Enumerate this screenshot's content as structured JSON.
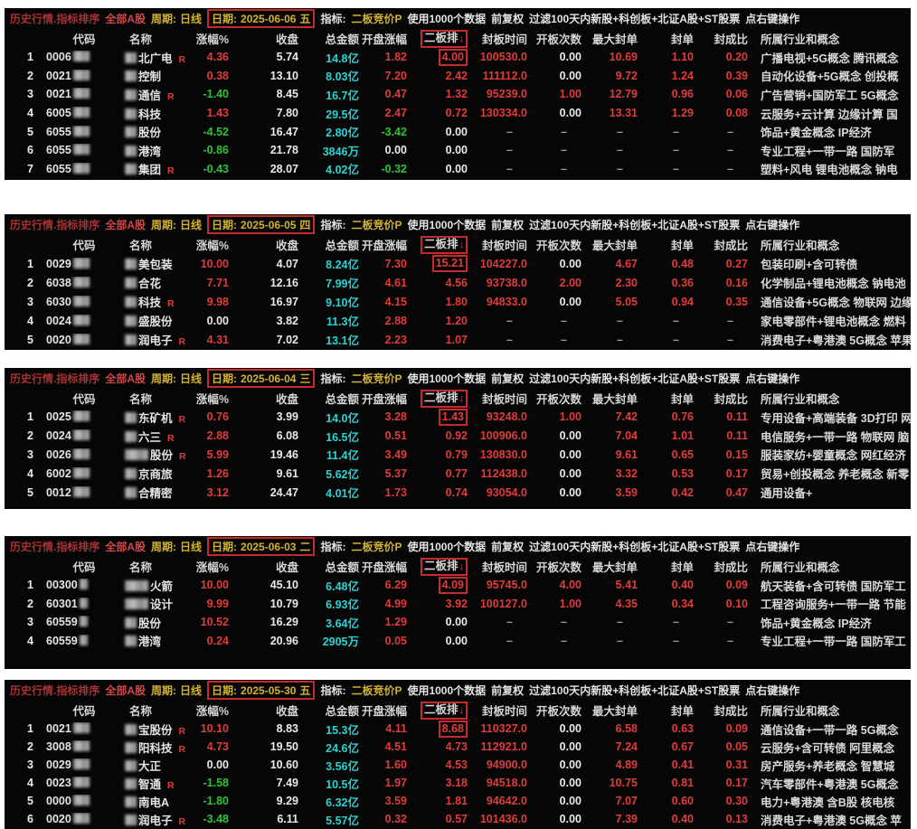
{
  "ui": {
    "sort_arrow": "↓",
    "dash": "–",
    "colors": {
      "up": "#e23b3b",
      "down": "#2bc437",
      "amount": "#29d3d3",
      "highlight_box": "#c62b2b",
      "date_text": "#d4b22e"
    }
  },
  "panels": [
    {
      "toolbar": {
        "title": "历史行情.指标排序",
        "market": "全部A股",
        "period_label": "周期:",
        "period_value": "日线",
        "date_label": "日期:",
        "date_value": "2025-06-06",
        "weekday": "五",
        "indicator_label": "指标:",
        "indicator_value": "二板竞价P",
        "data_info": "使用1000个数据",
        "fuquan": "前复权",
        "filter_info": "过滤100天内新股+科创板+北证A股+ST股票",
        "hint": "点右键操作"
      },
      "columns": [
        "代码",
        "名称",
        "涨幅%",
        "收盘",
        "总金额",
        "开盘涨幅",
        "二板排",
        "封板时间",
        "开板次数",
        "最大封单",
        "封单",
        "封成比",
        "所属行业和概念"
      ],
      "rows": [
        {
          "idx": "1",
          "code": "0006",
          "code_mask": 2,
          "name_mask": 1,
          "name": "北广电",
          "r": true,
          "pct": "4.36",
          "close": "5.74",
          "amount": "14.8亿",
          "open_pct": "1.82",
          "erban": "4.00",
          "erban_boxed": true,
          "seal_time": "100530.0",
          "open_times": "0.00",
          "max_seal": "10.69",
          "seal": "1.10",
          "seal_ratio": "0.20",
          "industry": "广播电视+5G概念 腾讯概念"
        },
        {
          "idx": "2",
          "code": "0021",
          "code_mask": 2,
          "name_mask": 1,
          "name": "控制",
          "r": false,
          "pct": "0.38",
          "close": "13.10",
          "amount": "8.03亿",
          "open_pct": "7.20",
          "erban": "2.42",
          "erban_boxed": false,
          "seal_time": "111112.0",
          "open_times": "0.00",
          "max_seal": "9.72",
          "seal": "1.24",
          "seal_ratio": "0.39",
          "industry": "自动化设备+5G概念 创投概"
        },
        {
          "idx": "3",
          "code": "0021",
          "code_mask": 2,
          "name_mask": 1,
          "name": "通信",
          "r": true,
          "pct": "-1.40",
          "close": "8.45",
          "amount": "16.7亿",
          "open_pct": "0.47",
          "erban": "1.32",
          "erban_boxed": false,
          "seal_time": "95239.0",
          "open_times": "1.00",
          "max_seal": "12.79",
          "seal": "0.96",
          "seal_ratio": "0.06",
          "industry": "广告营销+国防军工 5G概念"
        },
        {
          "idx": "4",
          "code": "6005",
          "code_mask": 2,
          "name_mask": 1,
          "name": "科技",
          "r": false,
          "pct": "1.43",
          "close": "7.80",
          "amount": "29.5亿",
          "open_pct": "2.47",
          "erban": "0.72",
          "erban_boxed": false,
          "seal_time": "130334.0",
          "open_times": "0.00",
          "max_seal": "13.31",
          "seal": "1.29",
          "seal_ratio": "0.08",
          "industry": "云服务+云计算 边缘计算 国"
        },
        {
          "idx": "5",
          "code": "6055",
          "code_mask": 2,
          "name_mask": 1,
          "name": "股份",
          "r": false,
          "pct": "-4.52",
          "close": "16.47",
          "amount": "2.80亿",
          "open_pct": "-3.42",
          "erban": "0.00",
          "erban_boxed": false,
          "seal_time": "–",
          "open_times": "–",
          "max_seal": "–",
          "seal": "–",
          "seal_ratio": "–",
          "industry": "饰品+黄金概念 IP经济"
        },
        {
          "idx": "6",
          "code": "6055",
          "code_mask": 2,
          "name_mask": 1,
          "name": "港湾",
          "r": false,
          "pct": "-0.86",
          "close": "21.78",
          "amount": "3846万",
          "open_pct": "0.00",
          "erban": "0.00",
          "erban_boxed": false,
          "seal_time": "–",
          "open_times": "–",
          "max_seal": "–",
          "seal": "–",
          "seal_ratio": "–",
          "industry": "专业工程+一带一路 国防军"
        },
        {
          "idx": "7",
          "code": "6055",
          "code_mask": 2,
          "name_mask": 1,
          "name": "集团",
          "r": true,
          "pct": "-0.43",
          "close": "28.07",
          "amount": "4.02亿",
          "open_pct": "-0.32",
          "erban": "0.00",
          "erban_boxed": false,
          "seal_time": "–",
          "open_times": "–",
          "max_seal": "–",
          "seal": "–",
          "seal_ratio": "–",
          "industry": "塑料+风电 锂电池概念 钠电"
        }
      ]
    },
    {
      "toolbar": {
        "title": "历史行情.指标排序",
        "market": "全部A股",
        "period_label": "周期:",
        "period_value": "日线",
        "date_label": "日期:",
        "date_value": "2025-06-05",
        "weekday": "四",
        "indicator_label": "指标:",
        "indicator_value": "二板竞价P",
        "data_info": "使用1000个数据",
        "fuquan": "前复权",
        "filter_info": "过滤100天内新股+科创板+北证A股+ST股票",
        "hint": "点右键操作"
      },
      "columns": [
        "代码",
        "名称",
        "涨幅%",
        "收盘",
        "总金额",
        "开盘涨幅",
        "二板排",
        "封板时间",
        "开板次数",
        "最大封单",
        "封单",
        "封成比",
        "所属行业和概念"
      ],
      "rows": [
        {
          "idx": "1",
          "code": "0029",
          "code_mask": 2,
          "name_mask": 1,
          "name": "美包装",
          "r": false,
          "pct": "10.00",
          "close": "4.07",
          "amount": "8.24亿",
          "open_pct": "7.30",
          "erban": "15.21",
          "erban_boxed": true,
          "seal_time": "104227.0",
          "open_times": "0.00",
          "max_seal": "4.67",
          "seal": "0.48",
          "seal_ratio": "0.27",
          "industry": "包装印刷+含可转债"
        },
        {
          "idx": "2",
          "code": "6038",
          "code_mask": 2,
          "name_mask": 1,
          "name": "合花",
          "r": false,
          "pct": "7.71",
          "close": "12.16",
          "amount": "7.99亿",
          "open_pct": "4.61",
          "erban": "4.56",
          "erban_boxed": false,
          "seal_time": "93738.0",
          "open_times": "2.00",
          "max_seal": "2.30",
          "seal": "0.36",
          "seal_ratio": "0.16",
          "industry": "化学制品+锂电池概念 钠电池"
        },
        {
          "idx": "3",
          "code": "6030",
          "code_mask": 2,
          "name_mask": 1,
          "name": "科技",
          "r": true,
          "pct": "9.98",
          "close": "16.97",
          "amount": "9.10亿",
          "open_pct": "4.15",
          "erban": "1.80",
          "erban_boxed": false,
          "seal_time": "94833.0",
          "open_times": "0.00",
          "max_seal": "5.05",
          "seal": "0.94",
          "seal_ratio": "0.35",
          "industry": "通信设备+5G概念 物联网 边缘"
        },
        {
          "idx": "4",
          "code": "0024",
          "code_mask": 2,
          "name_mask": 1,
          "name": "盛股份",
          "r": false,
          "pct": "0.00",
          "close": "3.82",
          "amount": "11.3亿",
          "open_pct": "2.88",
          "erban": "1.20",
          "erban_boxed": false,
          "seal_time": "–",
          "open_times": "–",
          "max_seal": "–",
          "seal": "–",
          "seal_ratio": "–",
          "industry": "家电零部件+锂电池概念 燃料"
        },
        {
          "idx": "5",
          "code": "0020",
          "code_mask": 2,
          "name_mask": 1,
          "name": "润电子",
          "r": true,
          "pct": "4.31",
          "close": "7.02",
          "amount": "13.1亿",
          "open_pct": "2.23",
          "erban": "1.07",
          "erban_boxed": false,
          "seal_time": "–",
          "open_times": "–",
          "max_seal": "–",
          "seal": "–",
          "seal_ratio": "–",
          "industry": "消费电子+粤港澳 5G概念 苹果"
        }
      ]
    },
    {
      "toolbar": {
        "title": "历史行情.指标排序",
        "market": "全部A股",
        "period_label": "周期:",
        "period_value": "日线",
        "date_label": "日期:",
        "date_value": "2025-06-04",
        "weekday": "三",
        "indicator_label": "指标:",
        "indicator_value": "二板竞价P",
        "data_info": "使用1000个数据",
        "fuquan": "前复权",
        "filter_info": "过滤100天内新股+科创板+北证A股+ST股票",
        "hint": "点右键操作"
      },
      "columns": [
        "代码",
        "名称",
        "涨幅%",
        "收盘",
        "总金额",
        "开盘涨幅",
        "二板排",
        "封板时间",
        "开板次数",
        "最大封单",
        "封单",
        "封成比",
        "所属行业和概念"
      ],
      "rows": [
        {
          "idx": "1",
          "code": "0025",
          "code_mask": 2,
          "name_mask": 1,
          "name": "东矿机",
          "r": true,
          "pct": "0.76",
          "close": "3.99",
          "amount": "14.0亿",
          "open_pct": "3.28",
          "erban": "1.43",
          "erban_boxed": true,
          "seal_time": "93248.0",
          "open_times": "1.00",
          "max_seal": "7.42",
          "seal": "0.76",
          "seal_ratio": "0.11",
          "industry": "专用设备+高端装备 3D打印 网"
        },
        {
          "idx": "2",
          "code": "0024",
          "code_mask": 2,
          "name_mask": 1,
          "name": "六三",
          "r": true,
          "pct": "2.88",
          "close": "6.08",
          "amount": "16.5亿",
          "open_pct": "0.51",
          "erban": "0.92",
          "erban_boxed": false,
          "seal_time": "100906.0",
          "open_times": "0.00",
          "max_seal": "7.04",
          "seal": "1.01",
          "seal_ratio": "0.11",
          "industry": "电信服务+一带一路 物联网 脑"
        },
        {
          "idx": "3",
          "code": "0026",
          "code_mask": 2,
          "name_mask": 2,
          "name": "股份",
          "r": true,
          "pct": "5.99",
          "close": "19.46",
          "amount": "11.4亿",
          "open_pct": "3.49",
          "erban": "0.79",
          "erban_boxed": false,
          "seal_time": "130830.0",
          "open_times": "0.00",
          "max_seal": "9.61",
          "seal": "0.65",
          "seal_ratio": "0.15",
          "industry": "服装家纺+婴童概念 网红经济"
        },
        {
          "idx": "4",
          "code": "6002",
          "code_mask": 2,
          "name_mask": 1,
          "name": "京商旅",
          "r": false,
          "pct": "1.26",
          "close": "9.61",
          "amount": "5.62亿",
          "open_pct": "5.37",
          "erban": "0.77",
          "erban_boxed": false,
          "seal_time": "112438.0",
          "open_times": "0.00",
          "max_seal": "3.32",
          "seal": "0.53",
          "seal_ratio": "0.17",
          "industry": "贸易+创投概念 养老概念 新零"
        },
        {
          "idx": "5",
          "code": "0012",
          "code_mask": 2,
          "name_mask": 1,
          "name": "合精密",
          "r": false,
          "pct": "3.12",
          "close": "24.47",
          "amount": "4.01亿",
          "open_pct": "1.73",
          "erban": "0.74",
          "erban_boxed": false,
          "seal_time": "93054.0",
          "open_times": "0.00",
          "max_seal": "3.59",
          "seal": "0.42",
          "seal_ratio": "0.47",
          "industry": "通用设备+"
        }
      ]
    },
    {
      "toolbar": {
        "title": "历史行情.指标排序",
        "market": "全部A股",
        "period_label": "周期:",
        "period_value": "日线",
        "date_label": "日期:",
        "date_value": "2025-06-03",
        "weekday": "二",
        "indicator_label": "指标:",
        "indicator_value": "二板竞价P",
        "data_info": "使用1000个数据",
        "fuquan": "前复权",
        "filter_info": "过滤100天内新股+科创板+北证A股+ST股票",
        "hint": "点右键操作"
      },
      "columns": [
        "代码",
        "名称",
        "涨幅%",
        "收盘",
        "总金额",
        "开盘涨幅",
        "二板排",
        "封板时间",
        "开板次数",
        "最大封单",
        "封单",
        "封成比",
        "所属行业和概念"
      ],
      "rows": [
        {
          "idx": "1",
          "code": "00300",
          "code_mask": 1,
          "name_mask": 2,
          "name": "火箭",
          "r": false,
          "pct": "10.00",
          "close": "45.10",
          "amount": "6.48亿",
          "open_pct": "6.29",
          "erban": "4.09",
          "erban_boxed": true,
          "seal_time": "95745.0",
          "open_times": "4.00",
          "max_seal": "5.41",
          "seal": "0.40",
          "seal_ratio": "0.09",
          "industry": "航天装备+含可转债 国防军工"
        },
        {
          "idx": "2",
          "code": "60301",
          "code_mask": 1,
          "name_mask": 2,
          "name": "设计",
          "r": false,
          "pct": "9.99",
          "close": "10.79",
          "amount": "6.93亿",
          "open_pct": "4.99",
          "erban": "3.92",
          "erban_boxed": false,
          "seal_time": "100127.0",
          "open_times": "1.00",
          "max_seal": "4.35",
          "seal": "0.34",
          "seal_ratio": "0.10",
          "industry": "工程咨询服务+一带一路 节能"
        },
        {
          "idx": "3",
          "code": "60559",
          "code_mask": 1,
          "name_mask": 1,
          "name": "股份",
          "r": false,
          "pct": "10.52",
          "close": "16.29",
          "amount": "3.64亿",
          "open_pct": "1.29",
          "erban": "0.00",
          "erban_boxed": false,
          "seal_time": "–",
          "open_times": "–",
          "max_seal": "–",
          "seal": "–",
          "seal_ratio": "–",
          "industry": "饰品+黄金概念 IP经济"
        },
        {
          "idx": "4",
          "code": "60559",
          "code_mask": 1,
          "name_mask": 1,
          "name": "港湾",
          "r": false,
          "pct": "0.24",
          "close": "20.96",
          "amount": "2905万",
          "open_pct": "0.05",
          "erban": "0.00",
          "erban_boxed": false,
          "seal_time": "–",
          "open_times": "–",
          "max_seal": "–",
          "seal": "–",
          "seal_ratio": "–",
          "industry": "专业工程+一带一路 国防军工"
        }
      ]
    },
    {
      "toolbar": {
        "title": "历史行情.指标排序",
        "market": "全部A股",
        "period_label": "周期:",
        "period_value": "日线",
        "date_label": "日期:",
        "date_value": "2025-05-30",
        "weekday": "五",
        "indicator_label": "指标:",
        "indicator_value": "二板竞价P",
        "data_info": "使用1000个数据",
        "fuquan": "前复权",
        "filter_info": "过滤100天内新股+科创板+北证A股+ST股票",
        "hint": "点右键操作"
      },
      "columns": [
        "代码",
        "名称",
        "涨幅%",
        "收盘",
        "总金额",
        "开盘涨幅",
        "二板排",
        "封板时间",
        "开板次数",
        "最大封单",
        "封单",
        "封成比",
        "所属行业和概念"
      ],
      "rows": [
        {
          "idx": "1",
          "code": "0021",
          "code_mask": 2,
          "name_mask": 1,
          "name": "宝股份",
          "r": true,
          "pct": "10.10",
          "close": "8.83",
          "amount": "15.3亿",
          "open_pct": "4.11",
          "erban": "8.68",
          "erban_boxed": true,
          "seal_time": "110327.0",
          "open_times": "0.00",
          "max_seal": "6.58",
          "seal": "0.63",
          "seal_ratio": "0.09",
          "industry": "通信设备+一带一路 5G概念"
        },
        {
          "idx": "2",
          "code": "3008",
          "code_mask": 2,
          "name_mask": 1,
          "name": "阳科技",
          "r": true,
          "pct": "4.73",
          "close": "19.50",
          "amount": "24.6亿",
          "open_pct": "4.51",
          "erban": "4.73",
          "erban_boxed": false,
          "seal_time": "112921.0",
          "open_times": "0.00",
          "max_seal": "7.24",
          "seal": "0.67",
          "seal_ratio": "0.05",
          "industry": "云服务+含可转债 阿里概念"
        },
        {
          "idx": "3",
          "code": "0029",
          "code_mask": 2,
          "name_mask": 1,
          "name": "大正",
          "r": false,
          "pct": "0.00",
          "close": "10.60",
          "amount": "3.56亿",
          "open_pct": "1.60",
          "erban": "4.53",
          "erban_boxed": false,
          "seal_time": "94900.0",
          "open_times": "0.00",
          "max_seal": "4.89",
          "seal": "0.41",
          "seal_ratio": "0.31",
          "industry": "房产服务+养老概念 智慧城"
        },
        {
          "idx": "4",
          "code": "0023",
          "code_mask": 2,
          "name_mask": 1,
          "name": "智通",
          "r": true,
          "pct": "-1.58",
          "close": "7.49",
          "amount": "10.5亿",
          "open_pct": "1.97",
          "erban": "3.18",
          "erban_boxed": false,
          "seal_time": "94518.0",
          "open_times": "0.00",
          "max_seal": "10.75",
          "seal": "0.81",
          "seal_ratio": "0.17",
          "industry": "汽车零部件+粤港澳 5G概念"
        },
        {
          "idx": "5",
          "code": "0000",
          "code_mask": 2,
          "name_mask": 1,
          "name": "南电A",
          "r": false,
          "pct": "-1.80",
          "close": "9.29",
          "amount": "6.32亿",
          "open_pct": "3.59",
          "erban": "1.81",
          "erban_boxed": false,
          "seal_time": "94642.0",
          "open_times": "0.00",
          "max_seal": "7.07",
          "seal": "0.60",
          "seal_ratio": "0.30",
          "industry": "电力+粤港澳 含B股 核电核"
        },
        {
          "idx": "6",
          "code": "0020",
          "code_mask": 2,
          "name_mask": 1,
          "name": "润电子",
          "r": true,
          "pct": "-3.48",
          "close": "6.11",
          "amount": "5.57亿",
          "open_pct": "0.32",
          "erban": "0.57",
          "erban_boxed": false,
          "seal_time": "101436.0",
          "open_times": "0.00",
          "max_seal": "7.39",
          "seal": "0.40",
          "seal_ratio": "0.13",
          "industry": "消费电子+粤港澳 5G概念 苹"
        }
      ]
    }
  ]
}
